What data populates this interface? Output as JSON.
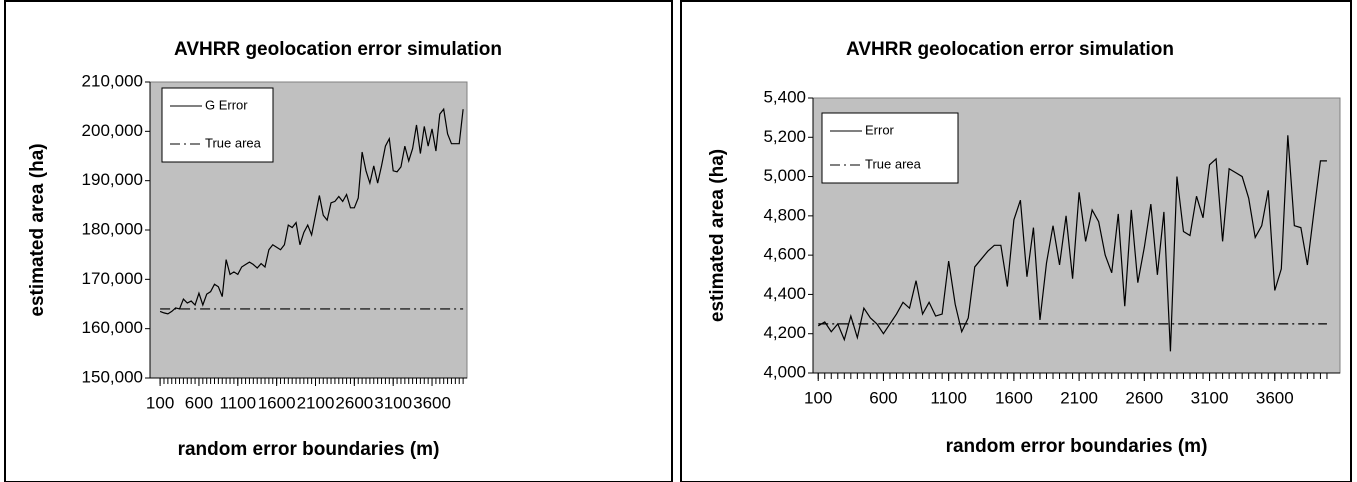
{
  "chart_data": [
    {
      "type": "line",
      "title": "AVHRR geolocation error simulation",
      "x_label": "random error boundaries (m)",
      "y_label": "estimated area (ha)",
      "x": [
        100,
        150,
        200,
        250,
        300,
        350,
        400,
        450,
        500,
        550,
        600,
        650,
        700,
        750,
        800,
        850,
        900,
        950,
        1000,
        1050,
        1100,
        1150,
        1200,
        1250,
        1300,
        1350,
        1400,
        1450,
        1500,
        1550,
        1600,
        1650,
        1700,
        1750,
        1800,
        1850,
        1900,
        1950,
        2000,
        2050,
        2100,
        2150,
        2200,
        2250,
        2300,
        2350,
        2400,
        2450,
        2500,
        2550,
        2600,
        2650,
        2700,
        2750,
        2800,
        2850,
        2900,
        2950,
        3000,
        3050,
        3100,
        3150,
        3200,
        3250,
        3300,
        3350,
        3400,
        3450,
        3500,
        3550,
        3600,
        3650,
        3700,
        3750,
        3800,
        3850,
        3900,
        3950,
        4000
      ],
      "series": [
        {
          "name": "G Error",
          "color": "#000000",
          "dash": "solid",
          "values": [
            163500,
            163200,
            163000,
            163500,
            164200,
            164000,
            166000,
            165200,
            165600,
            164800,
            167200,
            164800,
            167000,
            167500,
            169000,
            168500,
            166500,
            174000,
            171000,
            171500,
            171000,
            172500,
            173000,
            173500,
            173000,
            172300,
            173200,
            172500,
            176000,
            177000,
            176500,
            176000,
            177000,
            181000,
            180500,
            181500,
            177000,
            179500,
            181000,
            179000,
            183000,
            187000,
            183000,
            182000,
            185500,
            185800,
            186800,
            185800,
            187200,
            184500,
            184500,
            186500,
            195800,
            192000,
            189500,
            193000,
            189500,
            193000,
            197000,
            198500,
            192000,
            191800,
            192800,
            197000,
            194000,
            196500,
            201300,
            195500,
            201000,
            197000,
            200500,
            196000,
            203500,
            204500,
            199500,
            197500,
            197500,
            197500,
            204500
          ]
        },
        {
          "name": "True area",
          "color": "#000000",
          "dash": "dash-dot",
          "values": [
            164000,
            164000,
            164000,
            164000,
            164000,
            164000,
            164000,
            164000,
            164000,
            164000,
            164000,
            164000,
            164000,
            164000,
            164000,
            164000,
            164000,
            164000,
            164000,
            164000,
            164000,
            164000,
            164000,
            164000,
            164000,
            164000,
            164000,
            164000,
            164000,
            164000,
            164000,
            164000,
            164000,
            164000,
            164000,
            164000,
            164000,
            164000,
            164000,
            164000,
            164000,
            164000,
            164000,
            164000,
            164000,
            164000,
            164000,
            164000,
            164000,
            164000,
            164000,
            164000,
            164000,
            164000,
            164000,
            164000,
            164000,
            164000,
            164000,
            164000,
            164000,
            164000,
            164000,
            164000,
            164000,
            164000,
            164000,
            164000,
            164000,
            164000,
            164000,
            164000,
            164000,
            164000,
            164000,
            164000,
            164000,
            164000,
            164000
          ]
        }
      ],
      "xlim": [
        -30,
        4050
      ],
      "xticks": [
        100,
        600,
        1100,
        1600,
        2100,
        2600,
        3100,
        3600
      ],
      "ylim": [
        150000,
        210000
      ],
      "yticks": [
        {
          "value": 150000,
          "label": "150,000"
        },
        {
          "value": 160000,
          "label": "160,000"
        },
        {
          "value": 170000,
          "label": "170,000"
        },
        {
          "value": 180000,
          "label": "180,000"
        },
        {
          "value": 190000,
          "label": "190,000"
        },
        {
          "value": 200000,
          "label": "200,000"
        },
        {
          "value": 210000,
          "label": "210,000"
        }
      ],
      "grid": false,
      "background": "#c0c0c0",
      "legend": "upper left"
    },
    {
      "type": "line",
      "title": "AVHRR geolocation error simulation",
      "x_label": "random error boundaries (m)",
      "y_label": "estimated area (ha)",
      "x": [
        100,
        150,
        200,
        250,
        300,
        350,
        400,
        450,
        500,
        550,
        600,
        650,
        700,
        750,
        800,
        850,
        900,
        950,
        1000,
        1050,
        1100,
        1150,
        1200,
        1250,
        1300,
        1350,
        1400,
        1450,
        1500,
        1550,
        1600,
        1650,
        1700,
        1750,
        1800,
        1850,
        1900,
        1950,
        2000,
        2050,
        2100,
        2150,
        2200,
        2250,
        2300,
        2350,
        2400,
        2450,
        2500,
        2550,
        2600,
        2650,
        2700,
        2750,
        2800,
        2850,
        2900,
        2950,
        3000,
        3050,
        3100,
        3150,
        3200,
        3250,
        3300,
        3350,
        3400,
        3450,
        3500,
        3550,
        3600,
        3650,
        3700,
        3750,
        3800,
        3850,
        3900,
        3950,
        4000
      ],
      "series": [
        {
          "name": "Error",
          "color": "#000000",
          "dash": "solid",
          "values": [
            4240,
            4260,
            4210,
            4250,
            4170,
            4290,
            4180,
            4330,
            4280,
            4250,
            4200,
            4250,
            4300,
            4360,
            4330,
            4470,
            4300,
            4360,
            4290,
            4300,
            4570,
            4350,
            4210,
            4280,
            4540,
            4580,
            4620,
            4650,
            4650,
            4440,
            4780,
            4880,
            4490,
            4740,
            4270,
            4560,
            4750,
            4550,
            4800,
            4480,
            4920,
            4670,
            4830,
            4770,
            4600,
            4510,
            4810,
            4340,
            4830,
            4460,
            4640,
            4860,
            4500,
            4820,
            4110,
            5000,
            4720,
            4700,
            4900,
            4790,
            5060,
            5090,
            4670,
            5040,
            5020,
            5000,
            4890,
            4690,
            4750,
            4930,
            4420,
            4530,
            5210,
            4750,
            4740,
            4550,
            4820,
            5080,
            5080
          ]
        },
        {
          "name": "True area",
          "color": "#000000",
          "dash": "dash-dot",
          "values": [
            4250,
            4250,
            4250,
            4250,
            4250,
            4250,
            4250,
            4250,
            4250,
            4250,
            4250,
            4250,
            4250,
            4250,
            4250,
            4250,
            4250,
            4250,
            4250,
            4250,
            4250,
            4250,
            4250,
            4250,
            4250,
            4250,
            4250,
            4250,
            4250,
            4250,
            4250,
            4250,
            4250,
            4250,
            4250,
            4250,
            4250,
            4250,
            4250,
            4250,
            4250,
            4250,
            4250,
            4250,
            4250,
            4250,
            4250,
            4250,
            4250,
            4250,
            4250,
            4250,
            4250,
            4250,
            4250,
            4250,
            4250,
            4250,
            4250,
            4250,
            4250,
            4250,
            4250,
            4250,
            4250,
            4250,
            4250,
            4250,
            4250,
            4250,
            4250,
            4250,
            4250,
            4250,
            4250,
            4250,
            4250,
            4250,
            4250
          ]
        }
      ],
      "xlim": [
        60,
        4100
      ],
      "xticks": [
        100,
        600,
        1100,
        1600,
        2100,
        2600,
        3100,
        3600
      ],
      "ylim": [
        4000,
        5400
      ],
      "yticks": [
        {
          "value": 4000,
          "label": "4,000"
        },
        {
          "value": 4200,
          "label": "4,200"
        },
        {
          "value": 4400,
          "label": "4,400"
        },
        {
          "value": 4600,
          "label": "4,600"
        },
        {
          "value": 4800,
          "label": "4,800"
        },
        {
          "value": 5000,
          "label": "5,000"
        },
        {
          "value": 5200,
          "label": "5,200"
        },
        {
          "value": 5400,
          "label": "5,400"
        }
      ],
      "grid": false,
      "background": "#c0c0c0",
      "legend": "upper left"
    }
  ]
}
